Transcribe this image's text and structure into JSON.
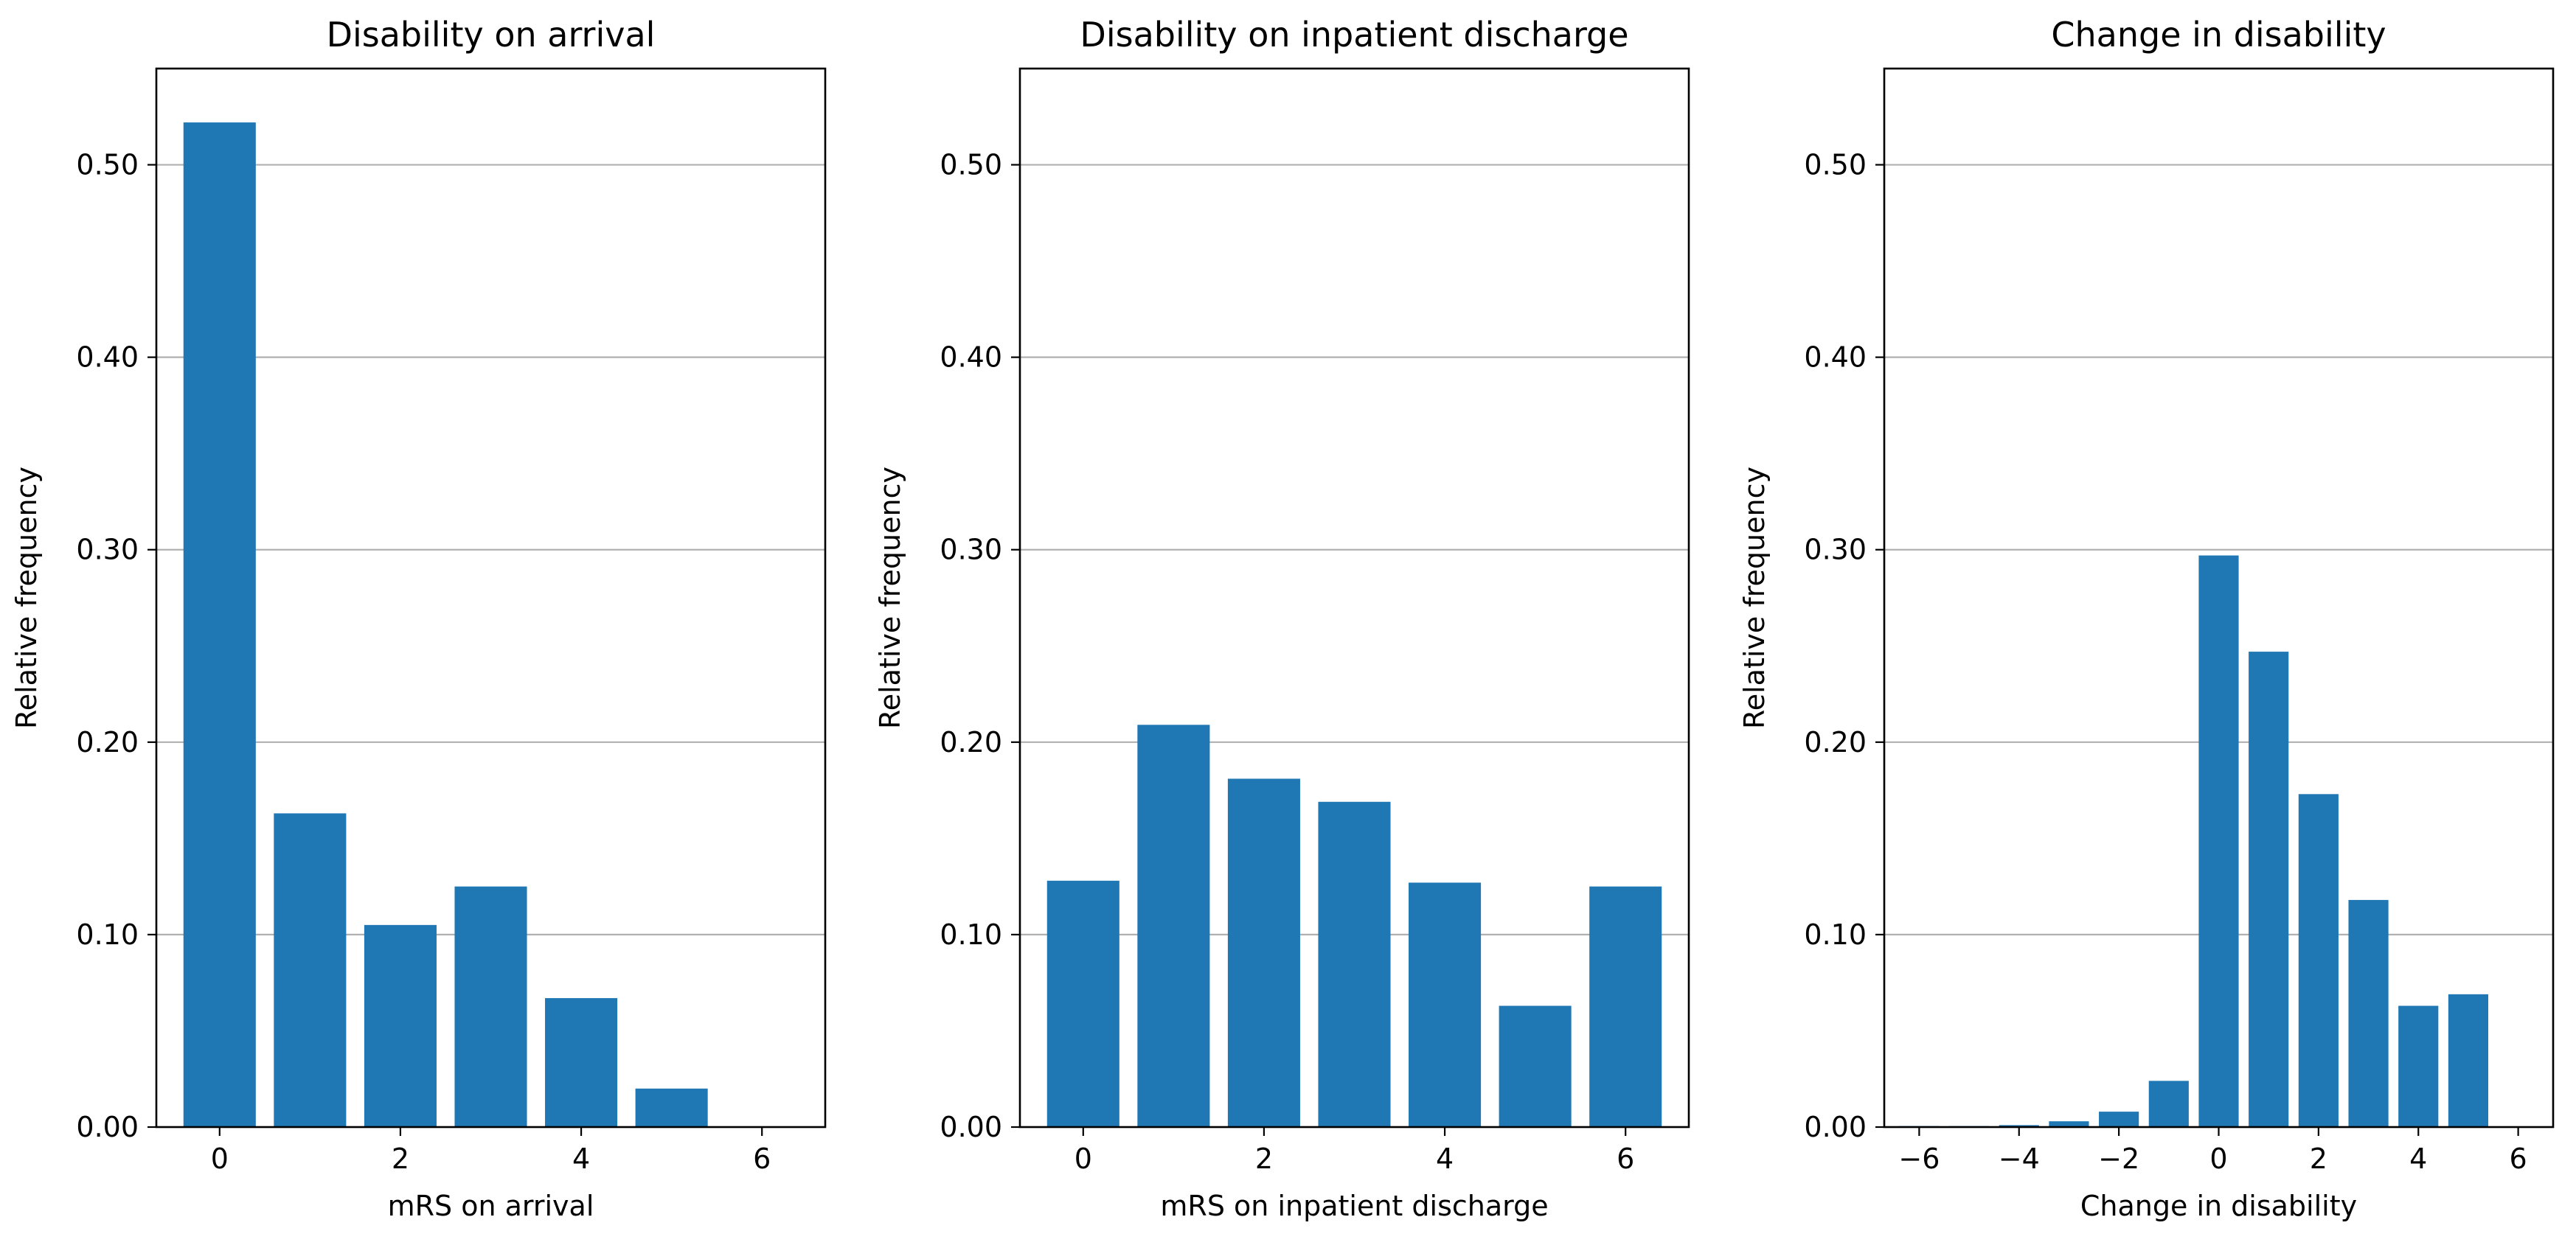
{
  "chart_data": [
    {
      "type": "bar",
      "title": "Disability on arrival",
      "xlabel": "mRS on arrival",
      "ylabel": "Relative frequency",
      "x": [
        0,
        1,
        2,
        3,
        4,
        5,
        6
      ],
      "values": [
        0.522,
        0.163,
        0.105,
        0.125,
        0.067,
        0.02,
        0.0
      ],
      "xlim": [
        -0.7,
        6.7
      ],
      "ylim": [
        0,
        0.55
      ],
      "xticks": [
        0,
        2,
        4,
        6
      ],
      "xtick_labels": [
        "0",
        "2",
        "4",
        "6"
      ],
      "yticks": [
        0,
        0.1,
        0.2,
        0.3,
        0.4,
        0.5
      ],
      "ytick_labels": [
        "0.00",
        "0.10",
        "0.20",
        "0.30",
        "0.40",
        "0.50"
      ],
      "grid": "y",
      "bar_color": "#1f77b4"
    },
    {
      "type": "bar",
      "title": "Disability on inpatient discharge",
      "xlabel": "mRS on inpatient discharge",
      "ylabel": "Relative frequency",
      "x": [
        0,
        1,
        2,
        3,
        4,
        5,
        6
      ],
      "values": [
        0.128,
        0.209,
        0.181,
        0.169,
        0.127,
        0.063,
        0.125
      ],
      "xlim": [
        -0.7,
        6.7
      ],
      "ylim": [
        0,
        0.55
      ],
      "xticks": [
        0,
        2,
        4,
        6
      ],
      "xtick_labels": [
        "0",
        "2",
        "4",
        "6"
      ],
      "yticks": [
        0,
        0.1,
        0.2,
        0.3,
        0.4,
        0.5
      ],
      "ytick_labels": [
        "0.00",
        "0.10",
        "0.20",
        "0.30",
        "0.40",
        "0.50"
      ],
      "grid": "y",
      "bar_color": "#1f77b4"
    },
    {
      "type": "bar",
      "title": "Change in disability",
      "xlabel": "Change in disability",
      "ylabel": "Relative frequency",
      "x": [
        -6,
        -5,
        -4,
        -3,
        -2,
        -1,
        0,
        1,
        2,
        3,
        4,
        5,
        6
      ],
      "values": [
        0.0005,
        0.0005,
        0.001,
        0.003,
        0.008,
        0.024,
        0.297,
        0.247,
        0.173,
        0.118,
        0.063,
        0.069,
        0.0
      ],
      "x_note": "",
      "xlim": [
        -6.7,
        6.7
      ],
      "ylim": [
        0,
        0.55
      ],
      "xticks": [
        -6,
        -4,
        -2,
        0,
        2,
        4,
        6
      ],
      "xtick_labels": [
        "−6",
        "−4",
        "−2",
        "0",
        "2",
        "4",
        "6"
      ],
      "yticks": [
        0,
        0.1,
        0.2,
        0.3,
        0.4,
        0.5
      ],
      "ytick_labels": [
        "0.00",
        "0.10",
        "0.20",
        "0.30",
        "0.40",
        "0.50"
      ],
      "grid": "y",
      "bar_color": "#1f77b4"
    }
  ]
}
